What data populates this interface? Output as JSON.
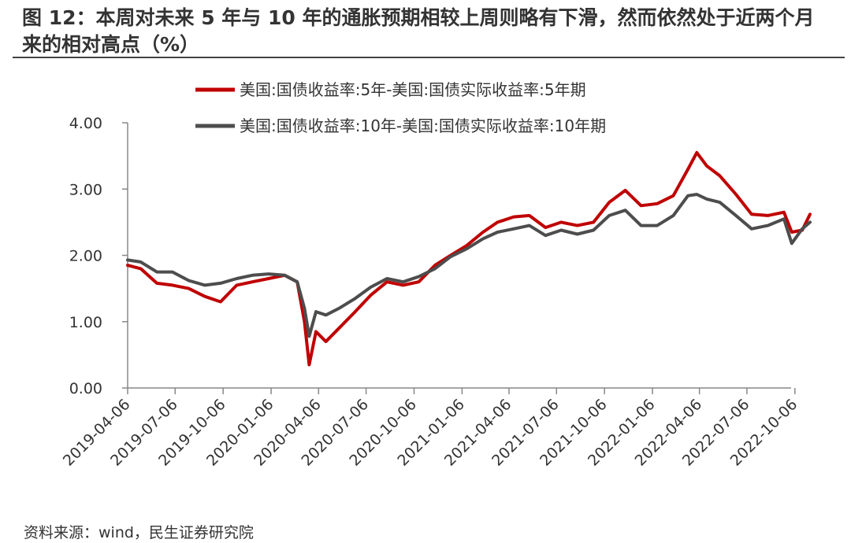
{
  "title": "图 12：本周对未来 5 年与 10 年的通胀预期相较上周则略有下滑，然而依然处于近两个月来的相对高点（%）",
  "source": "资料来源：wind，民生证券研究院",
  "chart_data": {
    "type": "line",
    "xlabel": "",
    "ylabel": "",
    "ylim": [
      0,
      4
    ],
    "yticks": [
      "0.00",
      "1.00",
      "2.00",
      "3.00",
      "4.00"
    ],
    "xticks": [
      "2019-04-06",
      "2019-07-06",
      "2019-10-06",
      "2020-01-06",
      "2020-04-06",
      "2020-07-06",
      "2020-10-06",
      "2021-01-06",
      "2021-04-06",
      "2021-07-06",
      "2021-10-06",
      "2022-01-06",
      "2022-04-06",
      "2022-07-06",
      "2022-10-06"
    ],
    "x_start": "2019-04-06",
    "x_end": "2022-10-06",
    "legend_position": "top",
    "grid": false,
    "colors": {
      "series1": "#c00000",
      "series2": "#4d4d4d"
    },
    "series": [
      {
        "name": "美国:国债收益率:5年-美国:国债实际收益率:5年期",
        "x": [
          "2019-04-06",
          "2019-05-01",
          "2019-06-01",
          "2019-07-01",
          "2019-08-01",
          "2019-09-01",
          "2019-10-01",
          "2019-11-01",
          "2019-12-01",
          "2020-01-01",
          "2020-02-01",
          "2020-02-25",
          "2020-03-10",
          "2020-03-19",
          "2020-04-01",
          "2020-04-20",
          "2020-05-15",
          "2020-06-15",
          "2020-07-15",
          "2020-08-15",
          "2020-09-15",
          "2020-10-15",
          "2020-11-15",
          "2020-12-15",
          "2021-01-15",
          "2021-02-15",
          "2021-03-15",
          "2021-04-15",
          "2021-05-15",
          "2021-06-15",
          "2021-07-15",
          "2021-08-15",
          "2021-09-15",
          "2021-10-15",
          "2021-11-15",
          "2021-12-15",
          "2022-01-15",
          "2022-02-15",
          "2022-03-15",
          "2022-04-01",
          "2022-04-20",
          "2022-05-15",
          "2022-06-15",
          "2022-07-15",
          "2022-08-15",
          "2022-09-15",
          "2022-09-30",
          "2022-10-20",
          "2022-11-04"
        ],
        "values": [
          1.85,
          1.8,
          1.58,
          1.55,
          1.5,
          1.38,
          1.3,
          1.55,
          1.6,
          1.65,
          1.7,
          1.6,
          1.0,
          0.35,
          0.85,
          0.7,
          0.9,
          1.15,
          1.4,
          1.6,
          1.55,
          1.6,
          1.85,
          2.0,
          2.15,
          2.35,
          2.5,
          2.58,
          2.6,
          2.42,
          2.5,
          2.45,
          2.5,
          2.8,
          2.98,
          2.75,
          2.78,
          2.9,
          3.3,
          3.55,
          3.35,
          3.2,
          2.92,
          2.62,
          2.6,
          2.65,
          2.35,
          2.38,
          2.62
        ]
      },
      {
        "name": "美国:国债收益率:10年-美国:国债实际收益率:10年期",
        "x": [
          "2019-04-06",
          "2019-05-01",
          "2019-06-01",
          "2019-07-01",
          "2019-08-01",
          "2019-09-01",
          "2019-10-01",
          "2019-11-01",
          "2019-12-01",
          "2020-01-01",
          "2020-02-01",
          "2020-02-25",
          "2020-03-10",
          "2020-03-19",
          "2020-04-01",
          "2020-04-20",
          "2020-05-15",
          "2020-06-15",
          "2020-07-15",
          "2020-08-15",
          "2020-09-15",
          "2020-10-15",
          "2020-11-15",
          "2020-12-15",
          "2021-01-15",
          "2021-02-15",
          "2021-03-15",
          "2021-04-15",
          "2021-05-15",
          "2021-06-15",
          "2021-07-15",
          "2021-08-15",
          "2021-09-15",
          "2021-10-15",
          "2021-11-15",
          "2021-12-15",
          "2022-01-15",
          "2022-02-15",
          "2022-03-15",
          "2022-04-01",
          "2022-04-20",
          "2022-05-15",
          "2022-06-15",
          "2022-07-15",
          "2022-08-15",
          "2022-09-15",
          "2022-09-30",
          "2022-10-20",
          "2022-11-04"
        ],
        "values": [
          1.93,
          1.9,
          1.75,
          1.75,
          1.62,
          1.55,
          1.58,
          1.65,
          1.7,
          1.72,
          1.7,
          1.6,
          1.2,
          0.78,
          1.15,
          1.1,
          1.2,
          1.35,
          1.52,
          1.65,
          1.6,
          1.68,
          1.8,
          1.98,
          2.1,
          2.25,
          2.35,
          2.4,
          2.45,
          2.3,
          2.38,
          2.32,
          2.38,
          2.6,
          2.68,
          2.45,
          2.45,
          2.6,
          2.9,
          2.92,
          2.85,
          2.8,
          2.6,
          2.4,
          2.45,
          2.55,
          2.18,
          2.4,
          2.5
        ]
      }
    ]
  }
}
